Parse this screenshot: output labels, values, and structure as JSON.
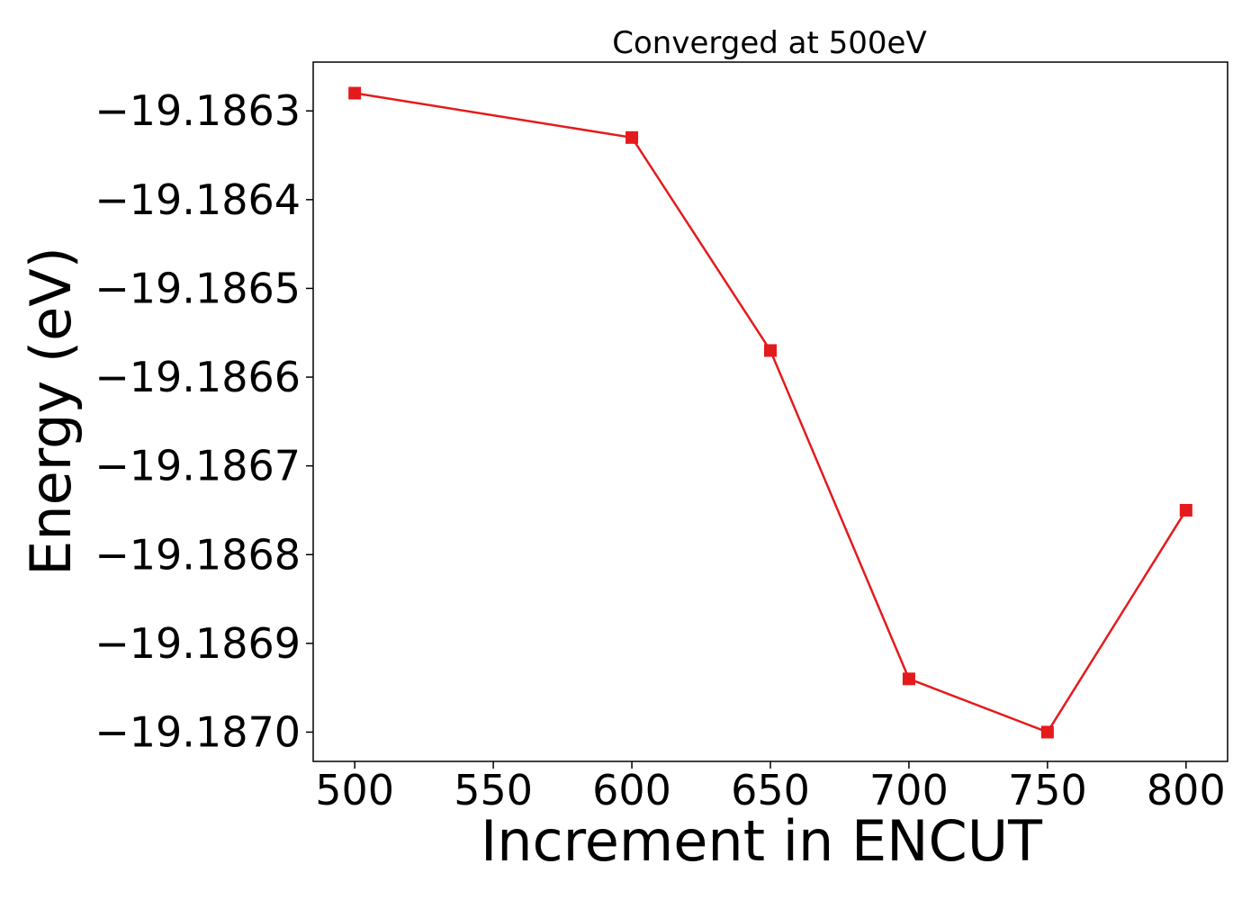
{
  "chart_data": {
    "type": "line",
    "title": "Converged at 500eV",
    "xlabel": "Increment in ENCUT",
    "ylabel": "Energy (eV)",
    "x": [
      500,
      600,
      650,
      700,
      750,
      800
    ],
    "series": [
      {
        "values": [
          -19.18628,
          -19.18633,
          -19.18657,
          -19.18694,
          -19.187,
          -19.18675
        ],
        "color": "#e41a1c",
        "marker": "square"
      }
    ],
    "xlim": [
      485,
      815
    ],
    "ylim": [
      -19.187033,
      -19.186245
    ],
    "xticks": [
      500,
      550,
      600,
      650,
      700,
      750,
      800
    ],
    "xtick_labels": [
      "500",
      "550",
      "600",
      "650",
      "700",
      "750",
      "800"
    ],
    "yticks": [
      -19.1863,
      -19.1864,
      -19.1865,
      -19.1866,
      -19.1867,
      -19.1868,
      -19.1869,
      -19.187
    ],
    "ytick_labels": [
      "−19.1863",
      "−19.1864",
      "−19.1865",
      "−19.1866",
      "−19.1867",
      "−19.1868",
      "−19.1869",
      "−19.1870"
    ],
    "grid": false,
    "legend": "none"
  }
}
